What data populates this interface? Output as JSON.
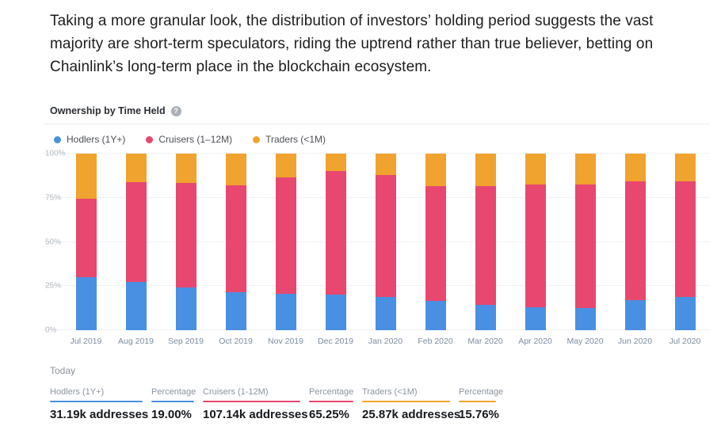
{
  "intro_paragraph": "Taking a more granular look, the distribution of investors’ holding period suggests the vast majority are short-term speculators, riding the uptrend rather than true believer, betting on Chainlink’s long-term place in the blockchain ecosystem.",
  "colors": {
    "hodlers": "#4a90e2",
    "cruisers": "#e8476f",
    "traders": "#f0a32e"
  },
  "chart": {
    "title": "Ownership by Time Held",
    "help_icon": "?"
  },
  "chart_data": {
    "type": "bar",
    "stacked": true,
    "title": "Ownership by Time Held",
    "xlabel": "",
    "ylabel": "",
    "ylim": [
      0,
      100
    ],
    "yticks": [
      "0%",
      "25%",
      "50%",
      "75%",
      "100%"
    ],
    "grid": true,
    "legend_position": "top",
    "categories": [
      "Jul 2019",
      "Aug 2019",
      "Sep 2019",
      "Oct 2019",
      "Nov 2019",
      "Dec 2019",
      "Jan 2020",
      "Feb 2020",
      "Mar 2020",
      "Apr 2020",
      "May 2020",
      "Jun 2020",
      "Jul 2020"
    ],
    "series": [
      {
        "key": "hodlers",
        "name": "Hodlers (1Y+)",
        "color": "#4a90e2",
        "values": [
          30,
          27.5,
          24,
          21.5,
          20.5,
          20,
          19,
          16.5,
          14.5,
          13,
          12.5,
          17,
          19
        ]
      },
      {
        "key": "cruisers",
        "name": "Cruisers (1–12M)",
        "color": "#e8476f",
        "values": [
          44.5,
          56.5,
          59.5,
          60.5,
          66,
          70,
          69,
          65,
          67,
          69.5,
          70,
          67.5,
          65.25
        ]
      },
      {
        "key": "traders",
        "name": "Traders (<1M)",
        "color": "#f0a32e",
        "values": [
          25.5,
          16,
          16.5,
          18,
          13.5,
          10,
          12,
          18.5,
          18.5,
          17.5,
          17.5,
          15.5,
          15.75
        ]
      }
    ]
  },
  "today": {
    "heading": "Today",
    "columns": [
      {
        "key": "hodlers-addresses",
        "label": "Hodlers (1Y+)",
        "value": "31.19k addresses",
        "color": "#4a90e2"
      },
      {
        "key": "hodlers-percentage",
        "label": "Percentage",
        "value": "19.00%",
        "color": "#4a90e2"
      },
      {
        "key": "cruisers-addresses",
        "label": "Cruisers (1-12M)",
        "value": "107.14k addresses",
        "color": "#e8476f"
      },
      {
        "key": "cruisers-percentage",
        "label": "Percentage",
        "value": "65.25%",
        "color": "#e8476f"
      },
      {
        "key": "traders-addresses",
        "label": "Traders (<1M)",
        "value": "25.87k addresses",
        "color": "#f0a32e"
      },
      {
        "key": "traders-percentage",
        "label": "Percentage",
        "value": "15.76%",
        "color": "#f0a32e"
      }
    ]
  }
}
